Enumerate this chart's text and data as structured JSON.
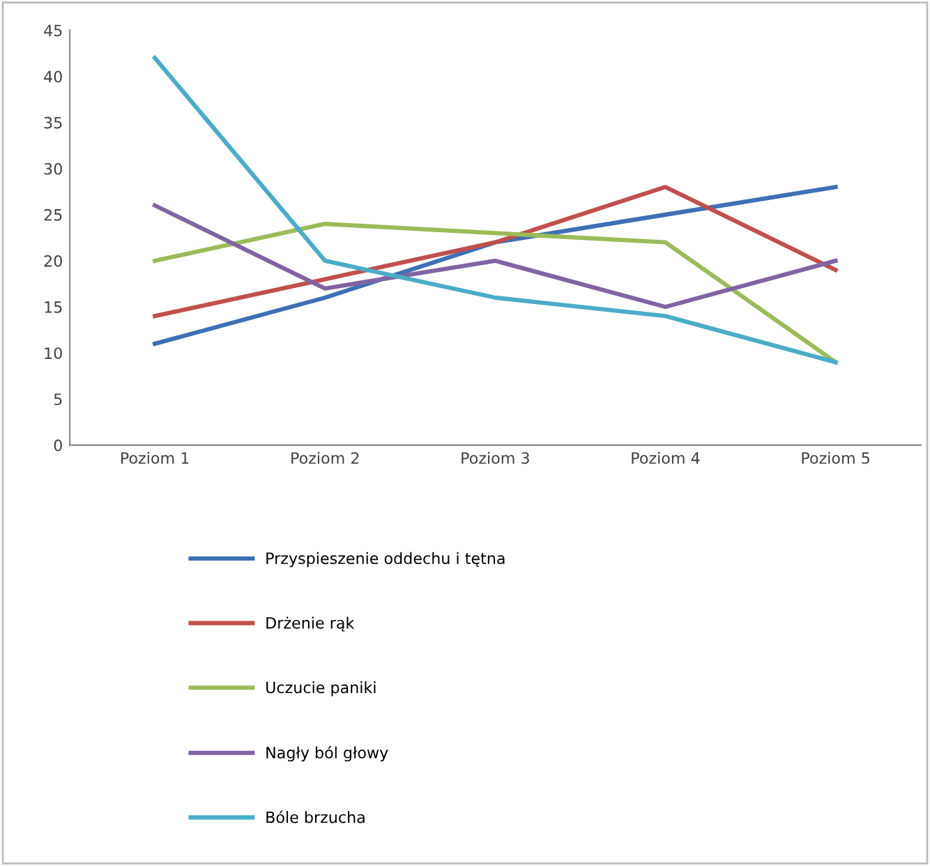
{
  "chart_data": {
    "type": "line",
    "categories": [
      "Poziom 1",
      "Poziom 2",
      "Poziom 3",
      "Poziom 4",
      "Poziom 5"
    ],
    "series": [
      {
        "name": "Przyspieszenie oddechu i tętna",
        "color": "#3f6fb5",
        "values": [
          11,
          16,
          22,
          25,
          28
        ]
      },
      {
        "name": "Drżenie rąk",
        "color": "#c0504d",
        "values": [
          14,
          18,
          22,
          28,
          19
        ]
      },
      {
        "name": "Uczucie paniki",
        "color": "#9bbb59",
        "values": [
          20,
          24,
          23,
          22,
          9
        ]
      },
      {
        "name": "Nagły ból głowy",
        "color": "#8064a2",
        "values": [
          26,
          17,
          20,
          15,
          20
        ]
      },
      {
        "name": "Bóle brzucha",
        "color": "#4bacc6",
        "values": [
          42,
          20,
          16,
          14,
          9
        ]
      }
    ],
    "ylim": [
      0,
      45
    ],
    "yticks": [
      0,
      5,
      10,
      15,
      20,
      25,
      30,
      35,
      40,
      45
    ],
    "grid": false,
    "legend": "bottom",
    "marker": "none",
    "line_style": "solid"
  }
}
